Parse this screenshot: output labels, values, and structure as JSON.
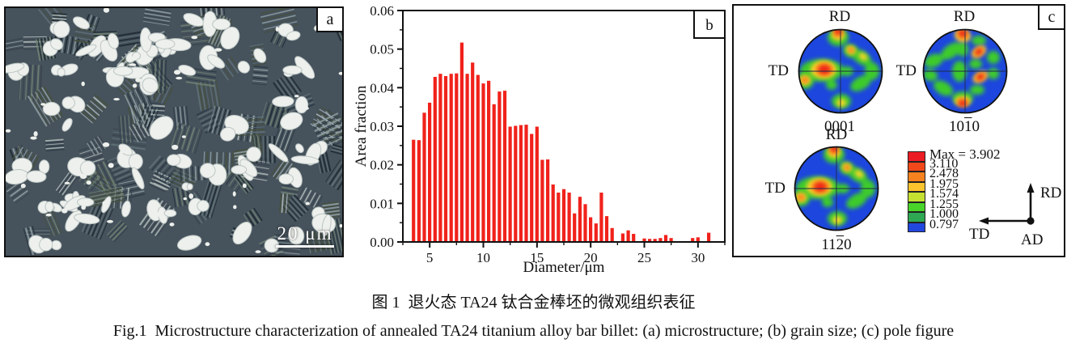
{
  "figure": {
    "caption_cn": "图 1  退火态 TA24 钛合金棒坯的微观组织表征",
    "caption_en": "Fig.1  Microstructure characterization of annealed TA24 titanium alloy bar billet: (a) microstructure; (b) grain size; (c) pole figure"
  },
  "panel_a": {
    "label": "a",
    "scale_bar_text": "20 μm",
    "micrograph": {
      "seed": 42,
      "background": "#46525c",
      "lamellae_dark_colors": [
        "#1f2a33",
        "#2e3b46",
        "#3a4550",
        "#46503f"
      ],
      "lamellae_light_colors": [
        "#8c9ba0",
        "#aab6b4",
        "#5f7076",
        "#6e7f72"
      ],
      "alpha_grain_fill": "#edf0ec",
      "alpha_grain_stroke": "#bcc5c4",
      "colony_count": 110,
      "alpha_blob_count": 88,
      "speck_count": 50
    }
  },
  "panel_b": {
    "label": "b"
  },
  "chart_data": {
    "type": "bar",
    "title": "",
    "xlabel": "Diameter/μm",
    "ylabel": "Area fraction",
    "xlim": [
      2.5,
      32.5
    ],
    "ylim": [
      0,
      0.06
    ],
    "x_major_ticks": [
      5,
      10,
      15,
      20,
      25,
      30
    ],
    "x_minor_step": 2.5,
    "y_major_step": 0.01,
    "y_minor_step": 0.005,
    "grid": false,
    "legend_position": "none",
    "bar_color": "#f0221b",
    "bar_width_units": 0.32,
    "x": [
      3.5,
      4,
      4.5,
      5,
      5.5,
      6,
      6.5,
      7,
      7.5,
      8,
      8.5,
      9,
      9.5,
      10,
      10.5,
      11,
      11.5,
      12,
      12.5,
      13,
      13.5,
      14,
      14.5,
      15,
      15.5,
      16,
      16.5,
      17,
      17.5,
      18,
      18.5,
      19,
      19.5,
      20,
      20.5,
      21,
      21.5,
      22,
      23,
      23.5,
      24,
      25,
      25.5,
      26,
      26.5,
      27,
      27.5,
      29.5,
      30,
      31
    ],
    "values": [
      0.0265,
      0.0264,
      0.0335,
      0.0361,
      0.0428,
      0.0436,
      0.043,
      0.0436,
      0.0437,
      0.0517,
      0.0436,
      0.0465,
      0.0433,
      0.0411,
      0.0418,
      0.0357,
      0.039,
      0.0392,
      0.0299,
      0.0301,
      0.0303,
      0.0304,
      0.028,
      0.0299,
      0.0213,
      0.0214,
      0.0149,
      0.0128,
      0.0137,
      0.0128,
      0.0074,
      0.0117,
      0.0098,
      0.0064,
      0.0048,
      0.0128,
      0.0067,
      0.0036,
      0.0022,
      0.003,
      0.0021,
      0.0009,
      0.0008,
      0.0008,
      0.001,
      0.0018,
      0.001,
      0.001,
      0.0012,
      0.0024
    ]
  },
  "panel_c": {
    "label": "c",
    "pf_colors": {
      "blue": "#1c46dd",
      "green": "#3ecb2a",
      "yellow": "#ffd42b",
      "orange": "#f6811f",
      "red": "#ee2015"
    },
    "pole_figures": [
      {
        "rd": "RD",
        "td": "TD",
        "hkl": {
          "pre": "0001",
          "bar": "",
          "post": ""
        },
        "pattern": "basal"
      },
      {
        "rd": "RD",
        "td": "TD",
        "hkl": {
          "pre": "10",
          "bar": "1",
          "post": "0"
        },
        "pattern": "prism"
      },
      {
        "rd": "RD",
        "td": "TD",
        "hkl": {
          "pre": "11",
          "bar": "2",
          "post": "0"
        },
        "pattern": "basal"
      }
    ],
    "patterns": {
      "basal": [
        {
          "color": "green",
          "blobs": [
            [
              32,
              54,
              27,
              14,
              0
            ],
            [
              52,
              13,
              13,
              11,
              0
            ],
            [
              11,
              67,
              11,
              10,
              0
            ],
            [
              68,
              30,
              10,
              8,
              25
            ],
            [
              81,
              38,
              14,
              8,
              35
            ],
            [
              94,
              55,
              9,
              11,
              0
            ],
            [
              80,
              70,
              14,
              8,
              -30
            ],
            [
              56,
              92,
              12,
              9,
              0
            ],
            [
              63,
              55,
              8,
              6,
              0
            ],
            [
              44,
              72,
              7,
              6,
              0
            ]
          ]
        },
        {
          "color": "yellow",
          "blobs": [
            [
              34,
              53,
              16,
              11,
              0
            ],
            [
              11,
              66,
              7,
              6,
              0
            ],
            [
              68,
              29,
              6,
              5,
              25
            ],
            [
              52,
              10,
              8,
              7,
              0
            ],
            [
              56,
              94,
              6,
              5,
              0
            ],
            [
              83,
              37,
              6,
              4,
              35
            ]
          ]
        },
        {
          "color": "orange",
          "blobs": [
            [
              35,
              53,
              11,
              8,
              0
            ],
            [
              11,
              66,
              5,
              4,
              0
            ],
            [
              68,
              29,
              4,
              3.5,
              25
            ],
            [
              52,
              8,
              6,
              5,
              0
            ]
          ]
        },
        {
          "color": "red",
          "blobs": [
            [
              35,
              53,
              7,
              5.5,
              0
            ],
            [
              52,
              5,
              4.5,
              4,
              0
            ]
          ]
        }
      ],
      "prism": [
        {
          "color": "green",
          "blobs": [
            [
              38,
              30,
              15,
              8,
              -35
            ],
            [
              16,
              42,
              12,
              8,
              -20
            ],
            [
              12,
              60,
              9,
              7,
              10
            ],
            [
              28,
              76,
              13,
              8,
              30
            ],
            [
              48,
              55,
              9,
              13,
              0
            ],
            [
              52,
              88,
              13,
              8,
              0
            ],
            [
              72,
              17,
              9,
              6,
              0
            ],
            [
              90,
              38,
              8,
              8,
              0
            ],
            [
              68,
              46,
              8,
              6,
              0
            ],
            [
              90,
              58,
              7,
              7,
              0
            ],
            [
              70,
              78,
              9,
              6,
              0
            ],
            [
              52,
              28,
              7,
              9,
              0
            ]
          ]
        },
        {
          "color": "yellow",
          "blobs": [
            [
              52,
              11,
              10,
              8,
              15
            ],
            [
              72,
              31,
              10,
              6,
              -35
            ],
            [
              74,
              62,
              10,
              6,
              -30
            ],
            [
              52,
              92,
              10,
              6,
              0
            ]
          ]
        },
        {
          "color": "orange",
          "blobs": [
            [
              52,
              10,
              7,
              5.5,
              15
            ],
            [
              72,
              31,
              7,
              4.5,
              -35
            ],
            [
              74,
              62,
              7,
              4.5,
              -30
            ],
            [
              52,
              93,
              7,
              5,
              0
            ]
          ]
        },
        {
          "color": "red",
          "blobs": [
            [
              52,
              8,
              5,
              4,
              15
            ],
            [
              72,
              31,
              4.5,
              3,
              -35
            ],
            [
              74,
              62,
              4.5,
              3,
              -30
            ],
            [
              52,
              95,
              5,
              3.5,
              0
            ]
          ]
        }
      ]
    },
    "legend": {
      "entries": [
        {
          "color": "#ec1c24",
          "label": "Max = 3.902"
        },
        {
          "color": "#f1481b",
          "label": "3.110"
        },
        {
          "color": "#f6821f",
          "label": "2.478"
        },
        {
          "color": "#fdc42e",
          "label": "1.975"
        },
        {
          "color": "#c6e032",
          "label": "1.574"
        },
        {
          "color": "#49d42a",
          "label": "1.255"
        },
        {
          "color": "#2fa853",
          "label": "1.000"
        },
        {
          "color": "#2247de",
          "label": "0.797"
        }
      ]
    },
    "triad": {
      "up": "RD",
      "left": "TD",
      "origin": "AD"
    }
  }
}
